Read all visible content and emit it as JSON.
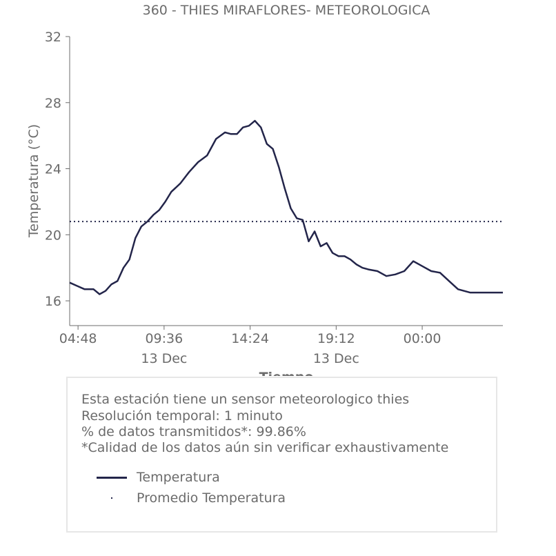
{
  "chart_data": {
    "type": "line",
    "title": "360 - THIES MIRAFLORES- METEOROLOGICA",
    "xlabel": "Tiempo",
    "ylabel": "Temperatura (°C)",
    "ylim": [
      14.5,
      32
    ],
    "yticks": [
      16,
      20,
      24,
      28,
      32
    ],
    "xlim": [
      "2023-12-13 04:20",
      "2023-12-14 04:30"
    ],
    "xticks": [
      {
        "time": "2023-12-13 04:48",
        "label": "04:48",
        "sublabel": ""
      },
      {
        "time": "2023-12-13 09:36",
        "label": "09:36",
        "sublabel": "13 Dec"
      },
      {
        "time": "2023-12-13 14:24",
        "label": "14:24",
        "sublabel": ""
      },
      {
        "time": "2023-12-13 19:12",
        "label": "19:12",
        "sublabel": "13 Dec"
      },
      {
        "time": "2023-12-14 00:00",
        "label": "00:00",
        "sublabel": ""
      }
    ],
    "series": [
      {
        "name": "Temperatura",
        "style": "solid",
        "color": "#23254a",
        "x": [
          "2023-12-13 04:20",
          "2023-12-13 04:45",
          "2023-12-13 05:10",
          "2023-12-13 05:40",
          "2023-12-13 06:00",
          "2023-12-13 06:20",
          "2023-12-13 06:40",
          "2023-12-13 07:00",
          "2023-12-13 07:20",
          "2023-12-13 07:40",
          "2023-12-13 08:00",
          "2023-12-13 08:20",
          "2023-12-13 08:40",
          "2023-12-13 09:00",
          "2023-12-13 09:20",
          "2023-12-13 09:40",
          "2023-12-13 10:00",
          "2023-12-13 10:30",
          "2023-12-13 11:00",
          "2023-12-13 11:30",
          "2023-12-13 12:00",
          "2023-12-13 12:30",
          "2023-12-13 13:00",
          "2023-12-13 13:20",
          "2023-12-13 13:40",
          "2023-12-13 14:00",
          "2023-12-13 14:20",
          "2023-12-13 14:40",
          "2023-12-13 15:00",
          "2023-12-13 15:20",
          "2023-12-13 15:40",
          "2023-12-13 16:00",
          "2023-12-13 16:20",
          "2023-12-13 16:40",
          "2023-12-13 17:00",
          "2023-12-13 17:20",
          "2023-12-13 17:40",
          "2023-12-13 18:00",
          "2023-12-13 18:20",
          "2023-12-13 18:40",
          "2023-12-13 19:00",
          "2023-12-13 19:20",
          "2023-12-13 19:40",
          "2023-12-13 20:00",
          "2023-12-13 20:20",
          "2023-12-13 20:40",
          "2023-12-13 21:00",
          "2023-12-13 21:30",
          "2023-12-13 22:00",
          "2023-12-13 22:30",
          "2023-12-13 23:00",
          "2023-12-13 23:30",
          "2023-12-14 00:00",
          "2023-12-14 00:30",
          "2023-12-14 01:00",
          "2023-12-14 01:30",
          "2023-12-14 02:00",
          "2023-12-14 02:20",
          "2023-12-14 02:40",
          "2023-12-14 03:00",
          "2023-12-14 03:20",
          "2023-12-14 03:40",
          "2023-12-14 04:00",
          "2023-12-14 04:20",
          "2023-12-14 04:30"
        ],
        "y": [
          17.1,
          16.9,
          16.7,
          16.7,
          16.4,
          16.6,
          17.0,
          17.2,
          18.0,
          18.5,
          19.8,
          20.5,
          20.8,
          21.2,
          21.5,
          22.0,
          22.6,
          23.1,
          23.8,
          24.4,
          24.8,
          25.8,
          26.2,
          26.1,
          26.1,
          26.5,
          26.6,
          26.9,
          26.5,
          25.5,
          25.2,
          24.1,
          22.8,
          21.6,
          21.0,
          20.9,
          19.6,
          20.2,
          19.3,
          19.5,
          18.9,
          18.7,
          18.7,
          18.5,
          18.2,
          18.0,
          17.9,
          17.8,
          17.5,
          17.6,
          17.8,
          18.4,
          18.1,
          17.8,
          17.7,
          17.2,
          16.7,
          16.6,
          16.5,
          16.5,
          16.5,
          16.5,
          16.5,
          16.5,
          16.5
        ]
      },
      {
        "name": "Promedio Temperatura",
        "style": "dotted",
        "color": "#23254a",
        "value": 20.8
      }
    ],
    "grid": false
  },
  "info": {
    "line1": "Esta estación tiene un sensor meteorologico thies",
    "line2": "Resolución temporal: 1 minuto",
    "line3": "% de datos transmitidos*: 99.86%",
    "line4": "*Calidad de los datos aún sin verificar exhaustivamente"
  },
  "legend": {
    "item1": "Temperatura",
    "item2": "Promedio Temperatura"
  },
  "colors": {
    "line": "#23254a",
    "text": "#6b6b6b",
    "border": "#e6e6e6"
  }
}
